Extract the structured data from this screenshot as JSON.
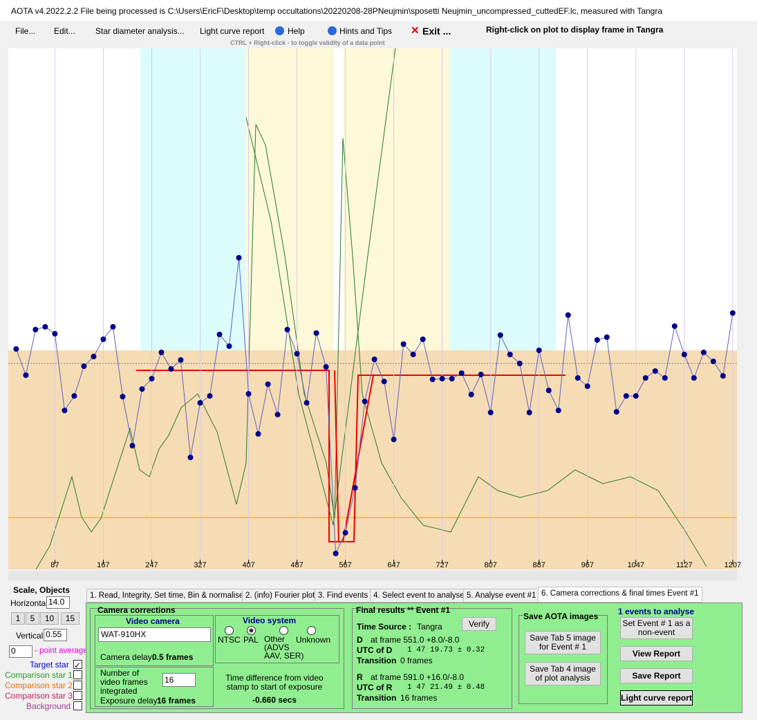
{
  "window": {
    "title": "AOTA v4.2022.2.2    File being processed is C:\\Users\\EricF\\Desktop\\temp occultations\\20220208-28PNeujmin\\sposetti Neujmin_uncompressed_cuttedEF.lc, measured with Tangra"
  },
  "menu": {
    "items": [
      "File...",
      "Edit...",
      "Star diameter analysis...",
      "Light curve report",
      "Help",
      "Hints and Tips",
      "Exit ..."
    ],
    "hint": "Right-click on plot to display frame in Tangra",
    "subhint": "CTRL + Right-click  -  to toggle validity of a data point"
  },
  "plot": {
    "xlim": [
      10,
      1214
    ],
    "ylim": [
      0,
      754
    ],
    "xticks": [
      87,
      167,
      247,
      327,
      407,
      487,
      567,
      647,
      727,
      807,
      887,
      967,
      1047,
      1127,
      1207
    ],
    "target_star": {
      "color": "#00008b",
      "x": [
        23,
        39,
        55,
        71,
        87,
        103,
        119,
        135,
        151,
        167,
        183,
        199,
        215,
        231,
        247,
        263,
        279,
        295,
        311,
        327,
        343,
        359,
        375,
        391,
        407,
        423,
        439,
        455,
        471,
        487,
        503,
        519,
        535,
        551,
        567,
        583,
        599,
        615,
        631,
        647,
        663,
        679,
        695,
        711,
        727,
        743,
        759,
        775,
        791,
        807,
        823,
        839,
        855,
        871,
        887,
        903,
        919,
        935,
        951,
        967,
        983,
        999,
        1015,
        1031,
        1047,
        1063,
        1079,
        1095,
        1111,
        1127,
        1143,
        1159,
        1175,
        1191,
        1207
      ],
      "values": [
        319,
        281,
        347,
        351,
        341,
        230,
        251,
        294,
        308,
        333,
        351,
        250,
        179,
        261,
        276,
        314,
        290,
        303,
        162,
        241,
        251,
        340,
        323,
        451,
        254,
        196,
        268,
        224,
        347,
        312,
        241,
        342,
        293,
        23,
        53,
        118,
        243,
        304,
        272,
        188,
        326,
        311,
        333,
        275,
        276,
        276,
        284,
        253,
        282,
        227,
        339,
        311,
        298,
        227,
        317,
        259,
        230,
        368,
        277,
        265,
        332,
        336,
        228,
        251,
        251,
        277,
        287,
        277,
        352,
        311,
        277,
        314,
        301,
        280,
        371
      ]
    }
  },
  "left_panel": {
    "scale_title": "Scale,  Objects",
    "horizontal": "Horizontal",
    "horizontal_value": "14.0",
    "scale_buttons": [
      "1",
      "5",
      "10",
      "15"
    ],
    "vertical": "Vertical",
    "vertical_value": "0.55",
    "average_value": "0",
    "average_label": "- point average",
    "objects": [
      "Target star",
      "Comparison star 1",
      "Comparison star 2",
      "Comparison star 3",
      "Background"
    ]
  },
  "tabs": [
    "1. Read, Integrity, Set time, Bin & normalise",
    "2. (info)  Fourier plot",
    "3. Find events",
    "4. Select event to analyse",
    "5. Analyse event #1",
    "6. Camera corrections & final times Event #1"
  ],
  "camera": {
    "title": "Camera corrections",
    "video_camera": "Video camera",
    "camera_model": "WAT-910HX",
    "camera_delay_label": "Camera delay:",
    "camera_delay": "0.5 frames",
    "frames_integrated_label": "Number of video frames integrated",
    "frames_integrated": "16",
    "exposure_delay_label": "Exposure delay:",
    "exposure_delay": "16 frames",
    "video_system": "Video system",
    "systems": [
      "NTSC",
      "PAL",
      "Other (ADVS AAV, SER)",
      "Unknown"
    ],
    "time_diff_label": "Time difference from video stamp to start of exposure",
    "time_diff": "-0.660 secs"
  },
  "results": {
    "title": "Final results  **  Event #1",
    "verify": "Verify",
    "time_source_label": "Time Source :",
    "time_source": "Tangra",
    "d": "D",
    "d_frame": "at frame 551.0  +8.0/-8.0",
    "utc_d_label": "UTC of D",
    "utc_d": "1 47 19.73  ± 0.32",
    "transition_label": "Transition",
    "d_transition": "0 frames",
    "r": "R",
    "r_frame": "at frame 591.0  +16.0/-8.0",
    "utc_r_label": "UTC of R",
    "utc_r": "1 47 21.49  ± 0.48",
    "r_transition": "16 frames"
  },
  "save": {
    "title": "Save AOTA images",
    "tab5": "Save Tab 5 image for Event # 1",
    "tab4": "Save Tab 4 image of plot analysis",
    "events": "1  events to analyse",
    "non_event": "Set Event # 1 as a non-event",
    "view_report": "View Report",
    "save_report": "Save Report",
    "light_curve_report": "Light curve report"
  }
}
